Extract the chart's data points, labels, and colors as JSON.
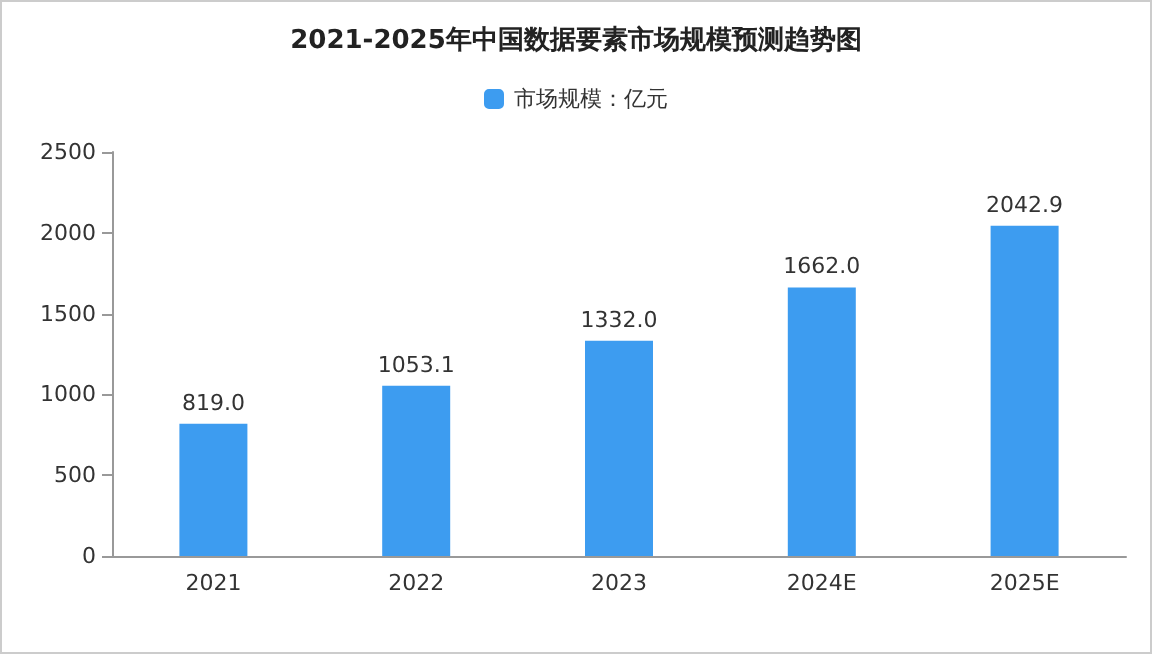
{
  "chart_data": {
    "type": "bar",
    "title": "2021-2025年中国数据要素市场规模预测趋势图",
    "categories": [
      "2021",
      "2022",
      "2023",
      "2024E",
      "2025E"
    ],
    "series": [
      {
        "name": "市场规模：亿元",
        "color": "#3d9cf0",
        "values": [
          819.0,
          1053.1,
          1332.0,
          1662.0,
          2042.9
        ]
      }
    ],
    "value_labels": [
      "819.0",
      "1053.1",
      "1332.0",
      "1662.0",
      "2042.9"
    ],
    "ylim": [
      0,
      2500
    ],
    "yticks": [
      0,
      500,
      1000,
      1500,
      2000,
      2500
    ],
    "grid": false,
    "legend": "top"
  }
}
